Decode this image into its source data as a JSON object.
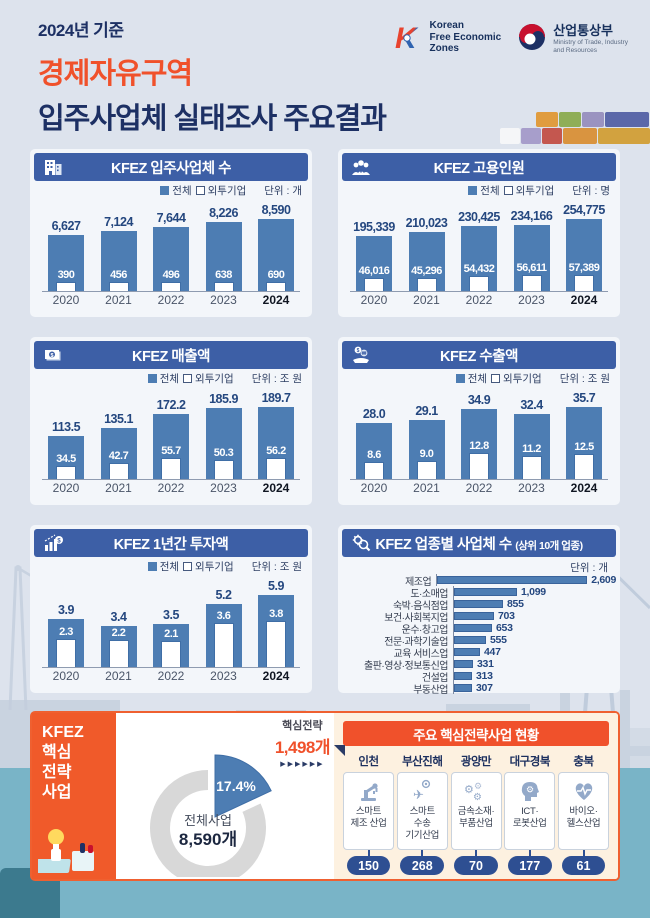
{
  "header": {
    "eyebrow": "2024년 기준",
    "title_accent": "경제자유구역",
    "title_main": "입주사업체 실태조사 주요결과",
    "kfez_logo": {
      "letter": "K",
      "line1": "Korean",
      "line2": "Free Economic",
      "line3": "Zones"
    },
    "ministry_logo": {
      "name": "산업통상부",
      "sub1": "Ministry of Trade, Industry",
      "sub2": "and Resources"
    }
  },
  "legend": {
    "total": "전체",
    "foreign": "외투기업"
  },
  "chart_data": [
    {
      "type": "bar",
      "title": "KFEZ 입주사업체 수",
      "icon": "building-icon",
      "unit": "단위 : 개",
      "categories": [
        "2020",
        "2021",
        "2022",
        "2023",
        "2024"
      ],
      "series": [
        {
          "name": "전체",
          "values": [
            6627,
            7124,
            7644,
            8226,
            8590
          ],
          "labels": [
            "6,627",
            "7,124",
            "7,644",
            "8,226",
            "8,590"
          ]
        },
        {
          "name": "외투기업",
          "values": [
            390,
            456,
            496,
            638,
            690
          ],
          "labels": [
            "390",
            "456",
            "496",
            "638",
            "690"
          ]
        }
      ]
    },
    {
      "type": "bar",
      "title": "KFEZ 고용인원",
      "icon": "people-icon",
      "unit": "단위 : 명",
      "categories": [
        "2020",
        "2021",
        "2022",
        "2023",
        "2024"
      ],
      "series": [
        {
          "name": "전체",
          "values": [
            195339,
            210023,
            230425,
            234166,
            254775
          ],
          "labels": [
            "195,339",
            "210,023",
            "230,425",
            "234,166",
            "254,775"
          ]
        },
        {
          "name": "외투기업",
          "values": [
            46016,
            45296,
            54432,
            56611,
            57389
          ],
          "labels": [
            "46,016",
            "45,296",
            "54,432",
            "56,611",
            "57,389"
          ]
        }
      ]
    },
    {
      "type": "bar",
      "title": "KFEZ 매출액",
      "icon": "banknote-icon",
      "unit": "단위 : 조 원",
      "categories": [
        "2020",
        "2021",
        "2022",
        "2023",
        "2024"
      ],
      "series": [
        {
          "name": "전체",
          "values": [
            113.5,
            135.1,
            172.2,
            185.9,
            189.7
          ],
          "labels": [
            "113.5",
            "135.1",
            "172.2",
            "185.9",
            "189.7"
          ]
        },
        {
          "name": "외투기업",
          "values": [
            34.5,
            42.7,
            55.7,
            50.3,
            56.2
          ],
          "labels": [
            "34.5",
            "42.7",
            "55.7",
            "50.3",
            "56.2"
          ]
        }
      ]
    },
    {
      "type": "bar",
      "title": "KFEZ 수출액",
      "icon": "coin-hand-icon",
      "unit": "단위 : 조 원",
      "categories": [
        "2020",
        "2021",
        "2022",
        "2023",
        "2024"
      ],
      "series": [
        {
          "name": "전체",
          "values": [
            28.0,
            29.1,
            34.9,
            32.4,
            35.7
          ],
          "labels": [
            "28.0",
            "29.1",
            "34.9",
            "32.4",
            "35.7"
          ]
        },
        {
          "name": "외투기업",
          "values": [
            8.6,
            9.0,
            12.8,
            11.2,
            12.5
          ],
          "labels": [
            "8.6",
            "9.0",
            "12.8",
            "11.2",
            "12.5"
          ]
        }
      ]
    },
    {
      "type": "bar",
      "title": "KFEZ 1년간 투자액",
      "icon": "invest-chart-icon",
      "unit": "단위 : 조 원",
      "categories": [
        "2020",
        "2021",
        "2022",
        "2023",
        "2024"
      ],
      "series": [
        {
          "name": "전체",
          "values": [
            3.9,
            3.4,
            3.5,
            5.2,
            5.9
          ],
          "labels": [
            "3.9",
            "3.4",
            "3.5",
            "5.2",
            "5.9"
          ]
        },
        {
          "name": "외투기업",
          "values": [
            2.3,
            2.2,
            2.1,
            3.6,
            3.8
          ],
          "labels": [
            "2.3",
            "2.2",
            "2.1",
            "3.6",
            "3.8"
          ]
        }
      ]
    },
    {
      "type": "bar-horizontal",
      "title": "KFEZ 업종별 사업체 수",
      "suffix": "(상위 10개 업종)",
      "icon": "gear-magnifier-icon",
      "unit": "단위 : 개",
      "categories": [
        "제조업",
        "도·소매업",
        "숙박·음식점업",
        "보건·사회복지업",
        "운수·창고업",
        "전문·과학기술업",
        "교육 서비스업",
        "출판·영상·정보통신업",
        "건설업",
        "부동산업"
      ],
      "values": [
        2609,
        1099,
        855,
        703,
        653,
        555,
        447,
        331,
        313,
        307
      ],
      "value_labels": [
        "2,609",
        "1,099",
        "855",
        "703",
        "653",
        "555",
        "447",
        "331",
        "313",
        "307"
      ]
    },
    {
      "type": "donut",
      "title": "KFEZ 핵심전략사업",
      "slice_label": "핵심전략",
      "slice_value": "1,498개",
      "slice_pct": 17.4,
      "pct_label": "17.4%",
      "center_label": "전체사업",
      "center_value": "8,590개",
      "arrows": "▶▶▶▶▶▶"
    }
  ],
  "strategy": {
    "sidebar_line1": "KFEZ",
    "sidebar_line2": "핵심",
    "sidebar_line3": "전략",
    "sidebar_line4": "사업",
    "panel_title": "주요 핵심전략사업  현황",
    "regions": [
      {
        "name": "인천",
        "industry": "스마트\n제조 산업",
        "count": "150",
        "icon": "robot-arm-icon"
      },
      {
        "name": "부산진해",
        "industry": "스마트\n수송\n기기산업",
        "count": "268",
        "icon": "airplane-icon"
      },
      {
        "name": "광양만",
        "industry": "금속소재·\n부품산업",
        "count": "70",
        "icon": "gears-icon"
      },
      {
        "name": "대구경북",
        "industry": "ICT·\n로봇산업",
        "count": "177",
        "icon": "head-gear-icon"
      },
      {
        "name": "충북",
        "industry": "바이오·\n헬스산업",
        "count": "61",
        "icon": "heart-pulse-icon"
      }
    ]
  },
  "colors": {
    "accent_orange": "#f0512b",
    "panel_header_blue": "#3d5fa6",
    "bar_blue": "#4d7db3",
    "navy_text": "#24477f",
    "badge_navy": "#2e4f92",
    "water_teal": "#79b4c7",
    "cream": "#fdf1e0"
  }
}
